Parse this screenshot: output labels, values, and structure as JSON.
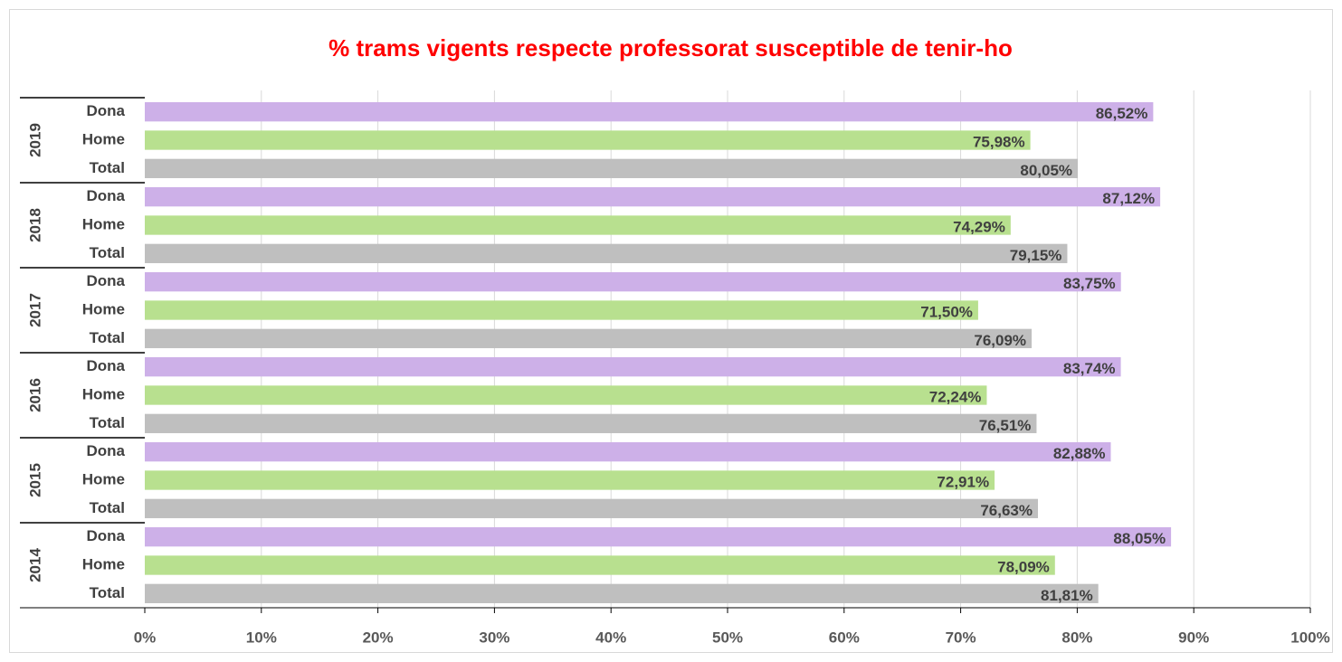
{
  "chart_data": {
    "type": "bar",
    "orientation": "horizontal",
    "title": "% trams vigents respecte professorat susceptible de tenir-ho",
    "colors": [
      "#cdb0e8",
      "#b8e08f",
      "#bfbfbf"
    ],
    "groups": [
      {
        "name": "2019",
        "categories": [
          "Dona",
          "Home",
          "Total"
        ],
        "values": [
          86.52,
          75.98,
          80.05
        ],
        "value_labels": [
          "86,52%",
          "75,98%",
          "80,05%"
        ]
      },
      {
        "name": "2018",
        "categories": [
          "Dona",
          "Home",
          "Total"
        ],
        "values": [
          87.12,
          74.29,
          79.15
        ],
        "value_labels": [
          "87,12%",
          "74,29%",
          "79,15%"
        ]
      },
      {
        "name": "2017",
        "categories": [
          "Dona",
          "Home",
          "Total"
        ],
        "values": [
          83.75,
          71.5,
          76.09
        ],
        "value_labels": [
          "83,75%",
          "71,50%",
          "76,09%"
        ]
      },
      {
        "name": "2016",
        "categories": [
          "Dona",
          "Home",
          "Total"
        ],
        "values": [
          83.74,
          72.24,
          76.51
        ],
        "value_labels": [
          "83,74%",
          "72,24%",
          "76,51%"
        ]
      },
      {
        "name": "2015",
        "categories": [
          "Dona",
          "Home",
          "Total"
        ],
        "values": [
          82.88,
          72.91,
          76.63
        ],
        "value_labels": [
          "82,88%",
          "72,91%",
          "76,63%"
        ]
      },
      {
        "name": "2014",
        "categories": [
          "Dona",
          "Home",
          "Total"
        ],
        "values": [
          88.05,
          78.09,
          81.81
        ],
        "value_labels": [
          "88,05%",
          "78,09%",
          "81,81%"
        ]
      }
    ],
    "xlim": [
      0,
      100
    ],
    "xticks": [
      {
        "value": 0,
        "label": "0%"
      },
      {
        "value": 10,
        "label": "10%"
      },
      {
        "value": 20,
        "label": "20%"
      },
      {
        "value": 30,
        "label": "30%"
      },
      {
        "value": 40,
        "label": "40%"
      },
      {
        "value": 50,
        "label": "50%"
      },
      {
        "value": 60,
        "label": "60%"
      },
      {
        "value": 70,
        "label": "70%"
      },
      {
        "value": 80,
        "label": "80%"
      },
      {
        "value": 90,
        "label": "90%"
      },
      {
        "value": 100,
        "label": "100%"
      }
    ],
    "grid": true
  }
}
